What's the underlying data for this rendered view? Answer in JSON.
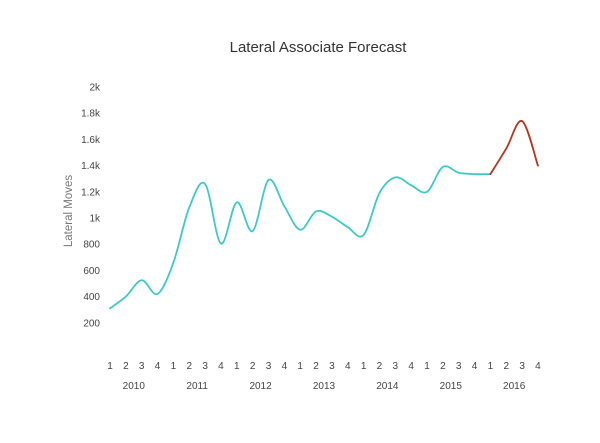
{
  "chart_data": {
    "type": "line",
    "title": "Lateral Associate Forecast",
    "ylabel": "Lateral Moves",
    "xlabel": "",
    "ylim": [
      0,
      2000
    ],
    "y_ticks": [
      200,
      400,
      600,
      800,
      1000,
      1200,
      1400,
      1600,
      1800,
      2000
    ],
    "y_tick_labels": [
      "200",
      "400",
      "600",
      "800",
      "1k",
      "1.2k",
      "1.4k",
      "1.6k",
      "1.8k",
      "2k"
    ],
    "grid": false,
    "legend": "none",
    "x_tick_labels": [
      "1",
      "2",
      "3",
      "4",
      "1",
      "2",
      "3",
      "4",
      "1",
      "2",
      "3",
      "4",
      "1",
      "2",
      "3",
      "4",
      "1",
      "2",
      "3",
      "4",
      "1",
      "2",
      "3",
      "4",
      "1",
      "2",
      "3",
      "4"
    ],
    "x_group_labels": [
      "2010",
      "2011",
      "2012",
      "2013",
      "2014",
      "2015",
      "2016"
    ],
    "x_positions": [
      0,
      1,
      2,
      3,
      4,
      5,
      6,
      7,
      8,
      9,
      10,
      11,
      12,
      13,
      14,
      15,
      16,
      17,
      18,
      19,
      20,
      21,
      22,
      23,
      24,
      25,
      26,
      27
    ],
    "series": [
      {
        "color": "#3ec9c9",
        "x": [
          0,
          1,
          2,
          3,
          4,
          5,
          6,
          7,
          8,
          9,
          10,
          11,
          12,
          13,
          14,
          15,
          16,
          17,
          18,
          19,
          20,
          21,
          22,
          23,
          24
        ],
        "values": [
          310,
          400,
          525,
          420,
          660,
          1080,
          1260,
          805,
          1120,
          900,
          1290,
          1090,
          910,
          1050,
          1010,
          930,
          870,
          1190,
          1310,
          1250,
          1200,
          1390,
          1345,
          1335,
          1335
        ]
      },
      {
        "color": "#b5341e",
        "x": [
          24,
          25,
          26,
          27
        ],
        "values": [
          1335,
          1530,
          1740,
          1400
        ]
      }
    ]
  }
}
